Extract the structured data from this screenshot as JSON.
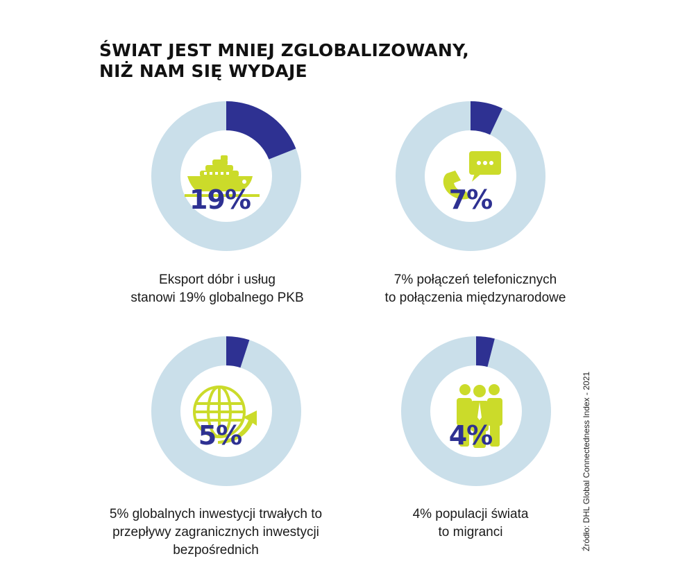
{
  "title": {
    "line1": "ŚWIAT JEST MNIEJ ZGLOBALIZOWANY,",
    "line2": "NIŻ NAM SIĘ WYDAJE"
  },
  "colors": {
    "share": "#2e3192",
    "remainder": "#cadfea",
    "icon": "#cbdb2a"
  },
  "chart_data": [
    {
      "type": "pie",
      "value": 19,
      "label": "19%",
      "icon": "ship-icon",
      "caption": [
        "Eksport dóbr i usług",
        "stanowi 19% globalnego PKB"
      ]
    },
    {
      "type": "pie",
      "value": 7,
      "label": "7%",
      "icon": "phone-chat-icon",
      "caption": [
        "7% połączeń telefonicznych",
        "to połączenia międzynarodowe"
      ]
    },
    {
      "type": "pie",
      "value": 5,
      "label": "5%",
      "icon": "globe-arrow-icon",
      "caption": [
        "5% globalnych inwestycji trwałych to",
        "przepływy zagranicznych inwestycji",
        "bezpośrednich"
      ]
    },
    {
      "type": "pie",
      "value": 4,
      "label": "4%",
      "icon": "people-icon",
      "caption": [
        "4% populacji świata",
        "to migranci"
      ]
    }
  ],
  "source": "Źródło: DHL Global Connectedness Index - 2021"
}
